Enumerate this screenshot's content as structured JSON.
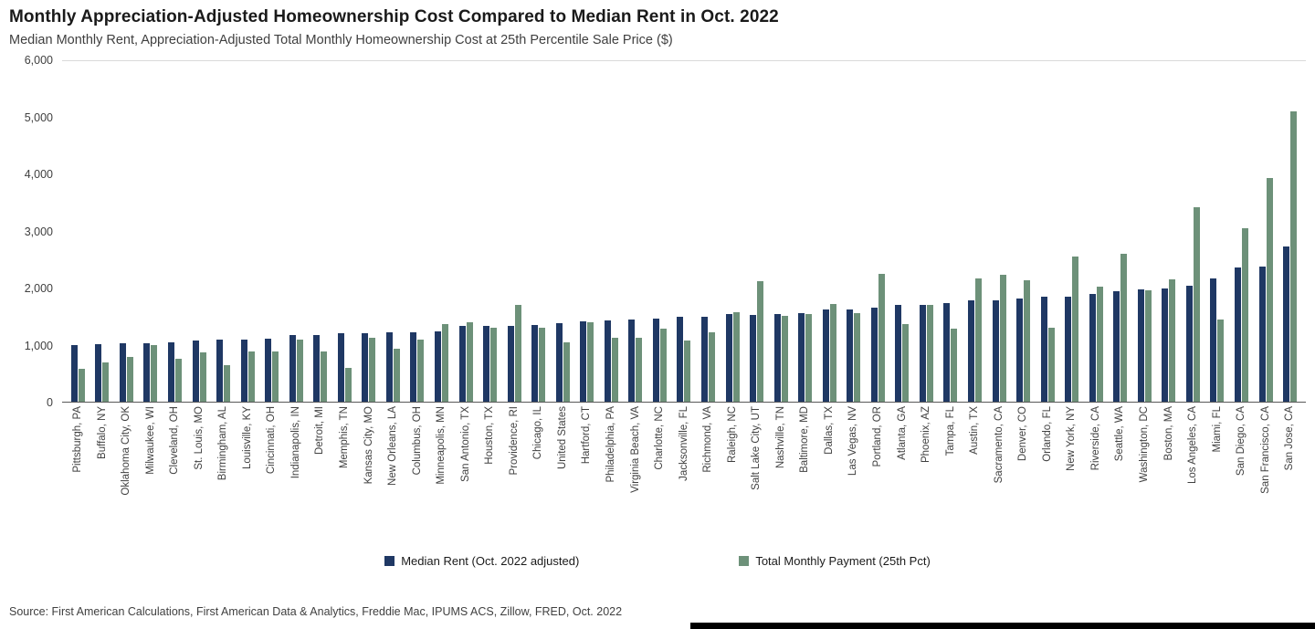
{
  "title": "Monthly Appreciation-Adjusted Homeownership Cost Compared to Median Rent in Oct. 2022",
  "subtitle": "Median Monthly Rent, Appreciation-Adjusted Total Monthly Homeownership Cost at 25th Percentile Sale Price ($)",
  "source": "Source: First American Calculations, First American Data & Analytics, Freddie Mac, IPUMS ACS, Zillow, FRED, Oct. 2022",
  "colors": {
    "rent": "#1f3864",
    "payment": "#6d9179",
    "axis": "#595959",
    "gridline": "#d9d9d9"
  },
  "chart_data": {
    "type": "bar",
    "title": "Monthly Appreciation-Adjusted Homeownership Cost Compared to Median Rent in Oct. 2022",
    "xlabel": "",
    "ylabel": "Median Monthly Rent, Appreciation-Adjusted Total Monthly Homeownership Cost at 25th Percentile Sale Price ($)",
    "ylim": [
      0,
      6000
    ],
    "yticks": [
      0,
      1000,
      2000,
      3000,
      4000,
      5000,
      6000
    ],
    "ytick_labels": [
      "0",
      "1,000",
      "2,000",
      "3,000",
      "4,000",
      "5,000",
      "6,000"
    ],
    "grid": false,
    "legend_position": "bottom",
    "categories": [
      "Pittsburgh, PA",
      "Buffalo, NY",
      "Oklahoma City, OK",
      "Milwaukee, WI",
      "Cleveland, OH",
      "St. Louis, MO",
      "Birmingham, AL",
      "Louisville, KY",
      "Cincinnati, OH",
      "Indianapolis, IN",
      "Detroit, MI",
      "Memphis, TN",
      "Kansas City, MO",
      "New Orleans, LA",
      "Columbus, OH",
      "Minneapolis, MN",
      "San Antonio, TX",
      "Houston, TX",
      "Providence, RI",
      "Chicago, IL",
      "United States",
      "Hartford, CT",
      "Philadelphia, PA",
      "Virginia Beach, VA",
      "Charlotte, NC",
      "Jacksonville, FL",
      "Richmond, VA",
      "Raleigh, NC",
      "Salt Lake City, UT",
      "Nashville, TN",
      "Baltimore, MD",
      "Dallas, TX",
      "Las Vegas, NV",
      "Portland, OR",
      "Atlanta, GA",
      "Phoenix, AZ",
      "Tampa, FL",
      "Austin, TX",
      "Sacramento, CA",
      "Denver, CO",
      "Orlando, FL",
      "New York, NY",
      "Riverside, CA",
      "Seattle, WA",
      "Washington, DC",
      "Boston, MA",
      "Los Angeles, CA",
      "Miami, FL",
      "San Diego, CA",
      "San Francisco, CA",
      "San Jose, CA"
    ],
    "series": [
      {
        "name": "Median Rent (Oct. 2022 adjusted)",
        "key": "median-rent",
        "color": "#1f3864",
        "values": [
          990,
          1020,
          1030,
          1030,
          1050,
          1080,
          1090,
          1090,
          1110,
          1170,
          1180,
          1200,
          1210,
          1230,
          1230,
          1240,
          1330,
          1330,
          1340,
          1350,
          1390,
          1410,
          1430,
          1440,
          1470,
          1490,
          1500,
          1550,
          1530,
          1540,
          1560,
          1620,
          1630,
          1650,
          1700,
          1710,
          1730,
          1780,
          1780,
          1820,
          1850,
          1850,
          1900,
          1940,
          1980,
          2000,
          2050,
          2170,
          2370,
          2380,
          2740
        ]
      },
      {
        "name": "Total Monthly Payment (25th Pct)",
        "key": "total-monthly-payment",
        "color": "#6d9179",
        "values": [
          580,
          690,
          790,
          1000,
          750,
          870,
          650,
          880,
          880,
          1090,
          880,
          600,
          1130,
          930,
          1100,
          1360,
          1400,
          1310,
          1710,
          1310,
          1050,
          1400,
          1130,
          1130,
          1280,
          1080,
          1230,
          1570,
          2130,
          1510,
          1550,
          1720,
          1560,
          2260,
          1360,
          1700,
          1280,
          2170,
          2240,
          2140,
          1310,
          2550,
          2030,
          2610,
          1970,
          2150,
          3430,
          1450,
          3050,
          3940,
          5110
        ]
      }
    ]
  }
}
